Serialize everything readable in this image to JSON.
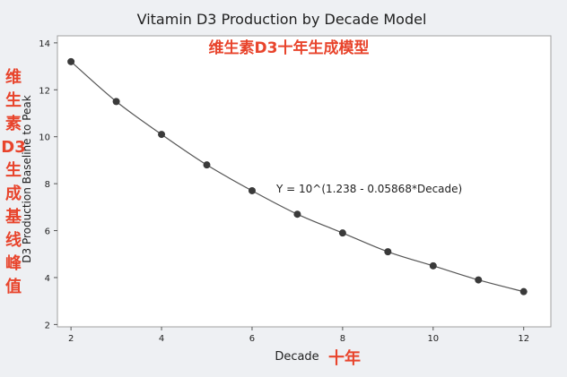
{
  "chart_data": {
    "type": "scatter",
    "title": "Vitamin D3 Production by Decade Model",
    "title_annotation": "维生素D3十年生成模型",
    "xlabel": "Decade",
    "xlabel_annotation": "十年",
    "ylabel": "D3 Production Baseline to Peak",
    "ylabel_annotation": [
      "维",
      "生",
      "素",
      "D3",
      "生",
      "成",
      "基",
      "线",
      "峰",
      "值"
    ],
    "equation": "Y = 10^(1.238 - 0.05868*Decade)",
    "xlim": [
      1.7,
      12.6
    ],
    "ylim": [
      1.9,
      14.3
    ],
    "xticks": [
      2,
      4,
      6,
      8,
      10,
      12
    ],
    "yticks": [
      2,
      4,
      6,
      8,
      10,
      12,
      14
    ],
    "grid": false,
    "fit_line": true,
    "points": [
      {
        "x": 2,
        "y": 13.2
      },
      {
        "x": 3,
        "y": 11.5
      },
      {
        "x": 4,
        "y": 10.1
      },
      {
        "x": 5,
        "y": 8.8
      },
      {
        "x": 6,
        "y": 7.7
      },
      {
        "x": 7,
        "y": 6.7
      },
      {
        "x": 8,
        "y": 5.9
      },
      {
        "x": 9,
        "y": 5.1
      },
      {
        "x": 10,
        "y": 4.5
      },
      {
        "x": 11,
        "y": 3.9
      },
      {
        "x": 12,
        "y": 3.4
      }
    ],
    "colors": {
      "background": "#eef0f3",
      "plot_background": "#ffffff",
      "frame": "#a0a0a0",
      "points": "#3a3a3a",
      "line": "#555555",
      "text": "#1f1f1f",
      "annotation_red": "#e8442c"
    }
  }
}
